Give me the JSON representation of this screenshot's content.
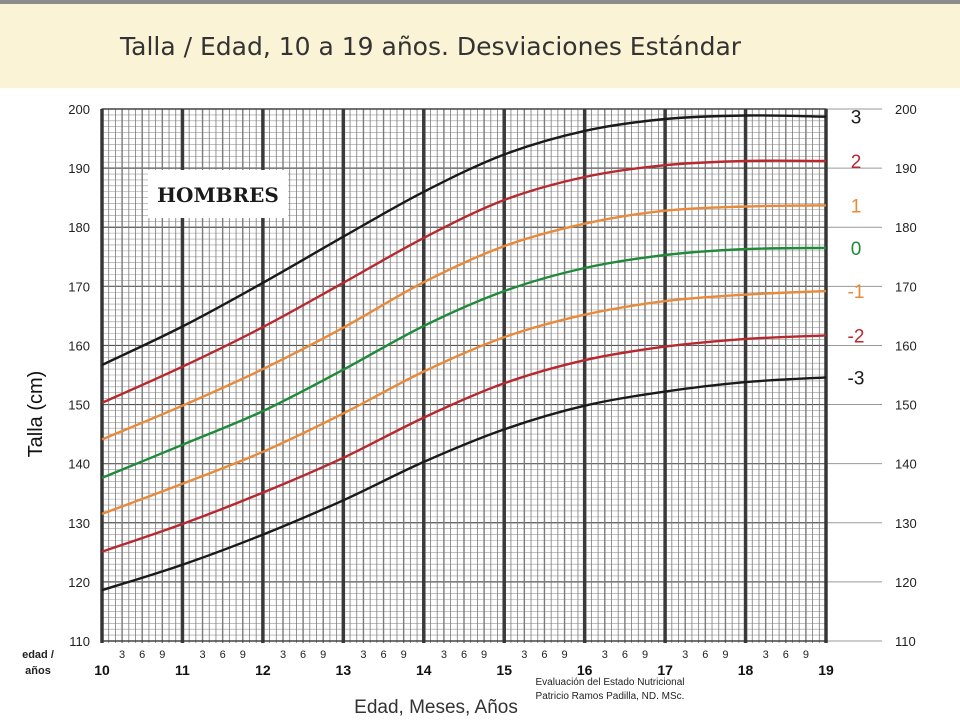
{
  "header": {
    "title": "Talla / Edad, 10 a 19 años. Desviaciones Estándar"
  },
  "credit": {
    "line1": "Evaluación del Estado Nutricional",
    "line2": "Patricio Ramos Padilla, ND. MSc."
  },
  "chart_data": {
    "type": "line",
    "title": "Talla / Edad, 10 a 19 años. Desviaciones Estándar",
    "inset_label": "HOMBRES",
    "ylabel": "Talla (cm)",
    "xlabel": "Edad, Meses, Años",
    "x_axis_caption": "edad / años",
    "xlim": [
      10,
      19
    ],
    "ylim": [
      110,
      200
    ],
    "x_ticks": [
      "10",
      "11",
      "12",
      "13",
      "14",
      "15",
      "16",
      "17",
      "18",
      "19"
    ],
    "x_minor_ticks": [
      "3",
      "6",
      "9"
    ],
    "y_ticks": [
      "110",
      "120",
      "130",
      "140",
      "150",
      "160",
      "170",
      "180",
      "190",
      "200"
    ],
    "grid": true,
    "x": [
      10,
      11,
      12,
      13,
      14,
      15,
      16,
      17,
      18,
      19
    ],
    "series": [
      {
        "name": "3",
        "color": "#1a1a1a",
        "values": [
          156.7,
          163.2,
          170.6,
          178.4,
          186.0,
          192.3,
          196.3,
          198.3,
          198.9,
          198.7
        ]
      },
      {
        "name": "2",
        "color": "#b8292f",
        "values": [
          150.3,
          156.4,
          163.1,
          170.6,
          178.2,
          184.6,
          188.5,
          190.5,
          191.2,
          191.2
        ]
      },
      {
        "name": "1",
        "color": "#e88a3a",
        "values": [
          144.1,
          149.8,
          156.0,
          163.0,
          170.7,
          176.8,
          180.6,
          182.8,
          183.5,
          183.7
        ]
      },
      {
        "name": "0",
        "color": "#1e8a3a",
        "values": [
          137.6,
          143.2,
          148.9,
          155.9,
          163.3,
          169.2,
          173.1,
          175.3,
          176.3,
          176.5
        ]
      },
      {
        "name": "-1",
        "color": "#e88a3a",
        "values": [
          131.5,
          136.6,
          142.0,
          148.5,
          155.6,
          161.4,
          165.2,
          167.5,
          168.6,
          169.2
        ]
      },
      {
        "name": "-2",
        "color": "#b8292f",
        "values": [
          125.1,
          129.8,
          135.1,
          141.0,
          147.8,
          153.6,
          157.5,
          159.8,
          161.1,
          161.7
        ]
      },
      {
        "name": "-3",
        "color": "#1a1a1a",
        "values": [
          118.6,
          122.9,
          128.0,
          133.8,
          140.3,
          145.8,
          149.8,
          152.2,
          153.8,
          154.6
        ]
      }
    ]
  }
}
